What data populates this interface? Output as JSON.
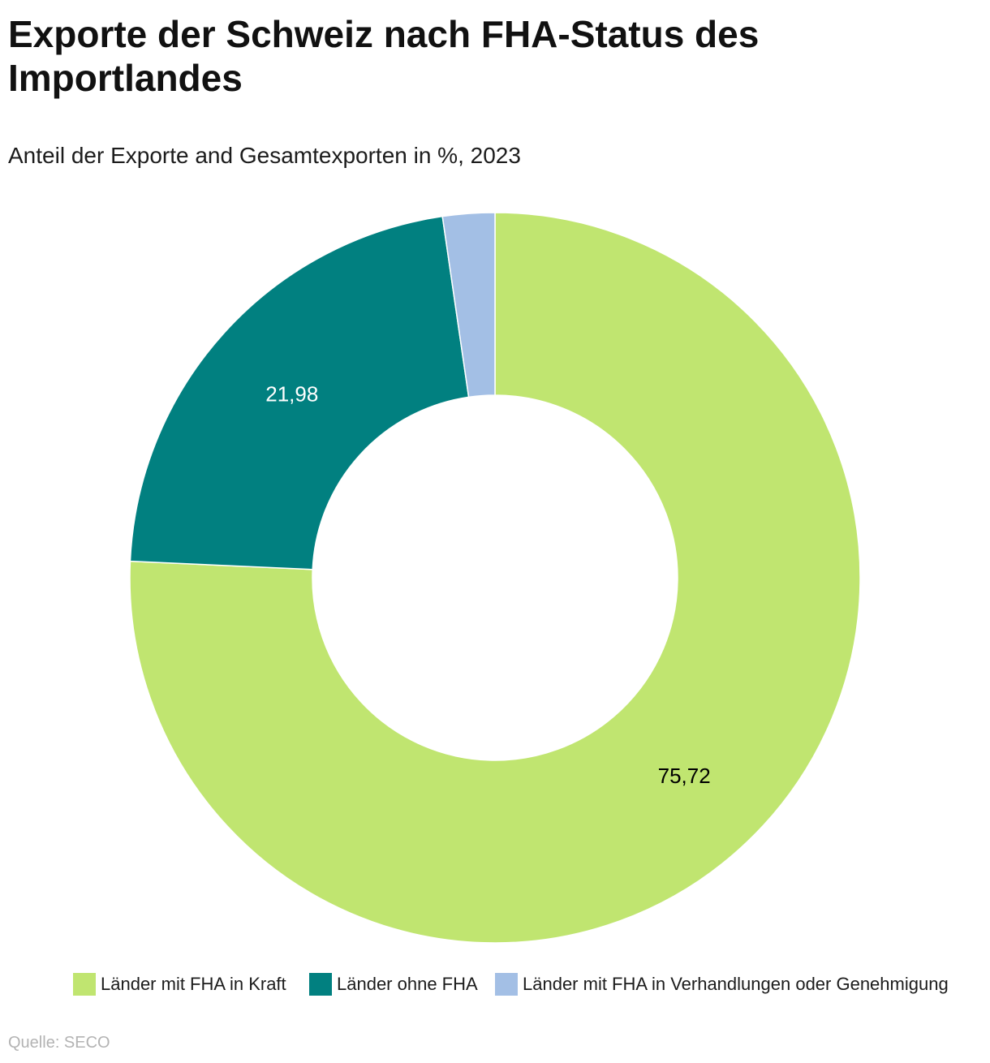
{
  "chart_data": {
    "type": "pie",
    "donut": true,
    "title": "Exporte der Schweiz nach FHA-Status des Importlandes",
    "subtitle": "Anteil der Exporte and Gesamtexporten in %, 2023",
    "categories": [
      "Länder mit FHA in Kraft",
      "Länder ohne FHA",
      "Länder mit FHA in Verhandlungen oder Genehmigung"
    ],
    "values": [
      75.72,
      21.98,
      2.3
    ],
    "value_labels": [
      "75,72",
      "21,98",
      null
    ],
    "value_label_colors": [
      "#000000",
      "#ffffff",
      null
    ],
    "colors": [
      "#c0e570",
      "#018080",
      "#a3bfe5"
    ],
    "legend_position": "bottom"
  },
  "footer": {
    "source": "Quelle: SECO"
  }
}
